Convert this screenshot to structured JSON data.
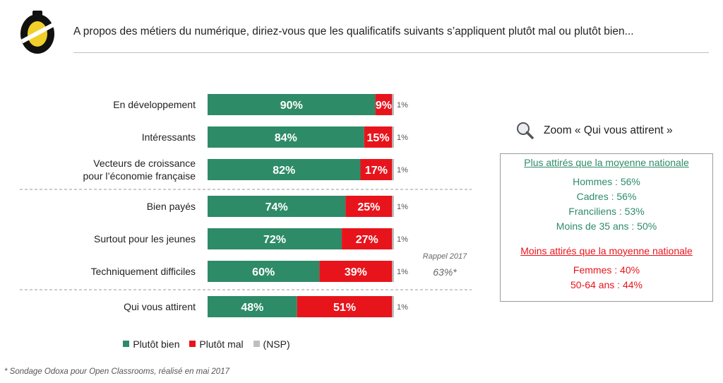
{
  "header": {
    "title": "A propos des métiers du numérique, diriez-vous que les qualificatifs suivants s’appliquent plutôt mal ou plutôt bien..."
  },
  "colors": {
    "bien": "#2e8b68",
    "mal": "#e8141c",
    "nsp": "#bfbfbf"
  },
  "chart_data": {
    "type": "bar",
    "orientation": "horizontal",
    "stacked": true,
    "categories": [
      [
        "En développement"
      ],
      [
        "Intéressants"
      ],
      [
        "Vecteurs de croissance",
        "pour l’économie française"
      ],
      [
        "Bien payés"
      ],
      [
        "Surtout pour les jeunes"
      ],
      [
        "Techniquement difficiles"
      ],
      [
        "Qui vous attirent"
      ]
    ],
    "series": [
      {
        "name": "Plutôt bien",
        "values": [
          90,
          84,
          82,
          74,
          72,
          60,
          48
        ],
        "labels": [
          "90%",
          "84%",
          "82%",
          "74%",
          "72%",
          "60%",
          "48%"
        ]
      },
      {
        "name": "Plutôt mal",
        "values": [
          9,
          15,
          17,
          25,
          27,
          39,
          51
        ],
        "labels": [
          "9%",
          "15%",
          "17%",
          "25%",
          "27%",
          "39%",
          "51%"
        ]
      },
      {
        "name": "(NSP)",
        "values": [
          1,
          1,
          1,
          1,
          1,
          1,
          1
        ],
        "labels": [
          "1%",
          "1%",
          "1%",
          "1%",
          "1%",
          "1%",
          "1%"
        ]
      }
    ],
    "xlim": [
      0,
      100
    ],
    "separators_after": [
      2,
      5
    ],
    "legend_position": "bottom"
  },
  "recall": {
    "label": "Rappel 2017",
    "value": "63%*"
  },
  "zoom": {
    "title": "Zoom « Qui vous attirent »",
    "more_heading": "Plus attirés que la moyenne nationale",
    "more_items": [
      "Hommes : 56%",
      "Cadres : 56%",
      "Franciliens : 53%",
      "Moins de 35 ans : 50%"
    ],
    "less_heading": "Moins attirés que la moyenne nationale",
    "less_items": [
      "Femmes : 40%",
      "50-64 ans : 44%"
    ]
  },
  "footnote": "* Sondage Odoxa pour Open Classrooms, réalisé en mai 2017"
}
